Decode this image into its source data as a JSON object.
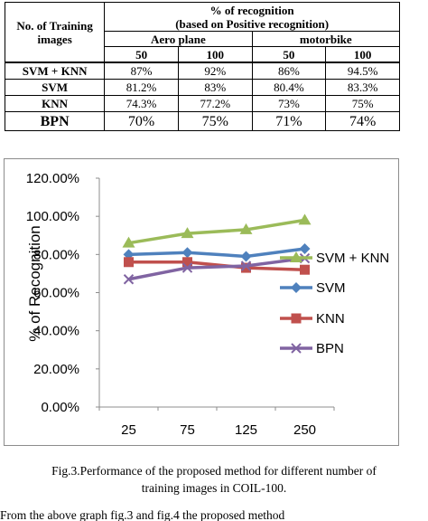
{
  "table": {
    "header": {
      "col0": "No. of Training images",
      "group_title": "% of recognition",
      "group_subtitle": "(based on Positive recognition)",
      "class1": "Aero plane",
      "class2": "motorbike",
      "n1": "50",
      "n2": "100",
      "n3": "50",
      "n4": "100"
    },
    "rows": [
      {
        "label": "SVM + KNN",
        "cells": [
          "87%",
          "92%",
          "86%",
          "94.5%"
        ]
      },
      {
        "label": "SVM",
        "cells": [
          "81.2%",
          "83%",
          "80.4%",
          "83.3%"
        ]
      },
      {
        "label": "KNN",
        "cells": [
          "74.3%",
          "77.2%",
          "73%",
          "75%"
        ]
      },
      {
        "label": "BPN",
        "cells": [
          "70%",
          "75%",
          "71%",
          "74%"
        ]
      }
    ]
  },
  "chart_data": {
    "type": "line",
    "ylabel": "% of Recognition",
    "xlabel": "",
    "categories": [
      "25",
      "75",
      "125",
      "250"
    ],
    "yticks": [
      "0.00%",
      "20.00%",
      "40.00%",
      "60.00%",
      "80.00%",
      "100.00%",
      "120.00%"
    ],
    "ylim": [
      0,
      120
    ],
    "legend_position": "right",
    "series": [
      {
        "name": "SVM + KNN",
        "values": [
          86,
          91,
          93,
          98
        ],
        "color": "#9bbb59",
        "marker": "triangle"
      },
      {
        "name": "SVM",
        "values": [
          80,
          81,
          79,
          83
        ],
        "color": "#4f81bd",
        "marker": "diamond"
      },
      {
        "name": "KNN",
        "values": [
          76,
          76,
          73,
          72
        ],
        "color": "#c0504d",
        "marker": "square"
      },
      {
        "name": "BPN",
        "values": [
          67,
          73,
          74,
          78
        ],
        "color": "#8064a2",
        "marker": "x"
      }
    ]
  },
  "caption": {
    "line1": "Fig.3.Performance of the proposed method for different number of",
    "line2": "training images in COIL-100."
  },
  "bottom_text": "From the above graph fig.3 and fig.4 the proposed method"
}
